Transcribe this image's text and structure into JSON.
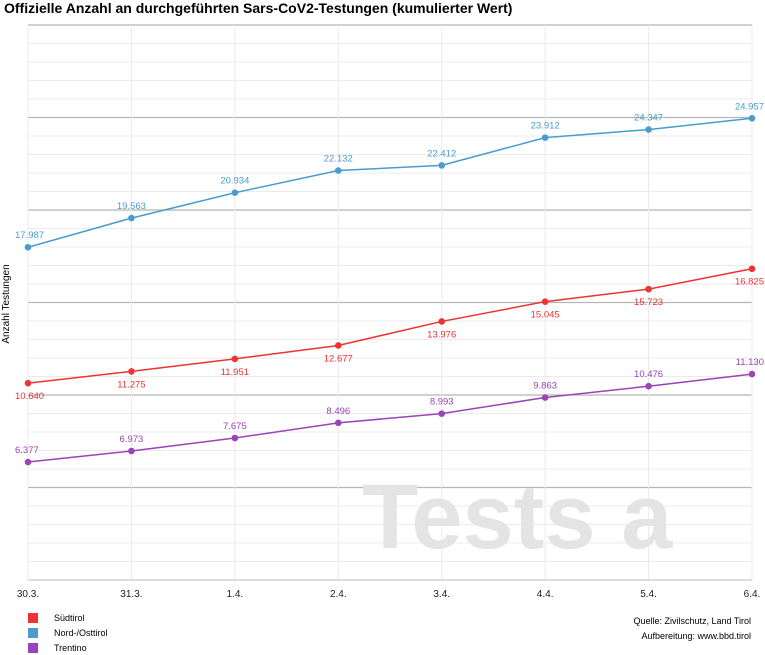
{
  "chart_data": {
    "type": "line",
    "title": "Offizielle Anzahl an durchgeführten Sars-CoV2-Testungen (kumulierter Wert)",
    "ylabel": "Anzahl Testungen",
    "xlabel": "",
    "categories": [
      "30.3.",
      "31.3.",
      "1.4.",
      "2.4.",
      "3.4.",
      "4.4.",
      "5.4.",
      "6.4."
    ],
    "ylim": [
      0,
      30000
    ],
    "grid": true,
    "legend": "bottom-left",
    "series": [
      {
        "name": "Südtirol",
        "color": "#ee3333",
        "values": [
          10640,
          11275,
          11951,
          12677,
          13976,
          15045,
          15723,
          16825
        ],
        "labels": [
          "10.640",
          "11.275",
          "11.951",
          "12.677",
          "13.976",
          "15.045",
          "15.723",
          "16.825"
        ]
      },
      {
        "name": "Nord-/Osttirol",
        "color": "#4a9ccc",
        "values": [
          17987,
          19563,
          20934,
          22132,
          22412,
          23912,
          24347,
          24957
        ],
        "labels": [
          "17.987",
          "19.563",
          "20.934",
          "22.132",
          "22.412",
          "23.912",
          "24.347",
          "24.957"
        ]
      },
      {
        "name": "Trentino",
        "color": "#9a44b8",
        "values": [
          6377,
          6973,
          7675,
          8496,
          8993,
          9863,
          10476,
          11130
        ],
        "labels": [
          "6.377",
          "6.973",
          "7.675",
          "8.496",
          "8.993",
          "9.863",
          "10.476",
          "11.130"
        ]
      }
    ]
  },
  "watermark": "Tests a",
  "credits": {
    "source": "Quelle: Zivilschutz, Land Tirol",
    "prepared": "Aufbereitung: www.bbd.tirol"
  }
}
